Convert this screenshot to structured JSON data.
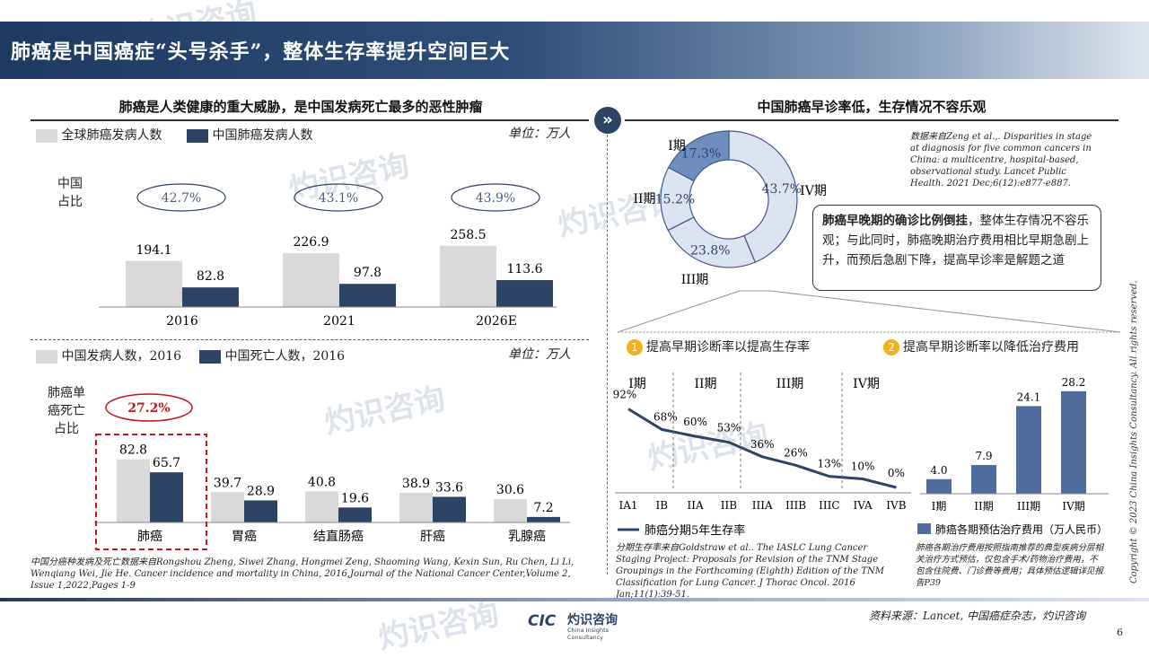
{
  "header": {
    "title": "肺癌是中国癌症“头号杀手”，整体生存率提升空间巨大"
  },
  "left": {
    "section_title": "肺癌是人类健康的重大威胁，是中国发病死亡最多的恶性肿瘤",
    "unit": "单位：万人"
  },
  "right": {
    "section_title": "中国肺癌早诊率低，生存情况不容乐观",
    "source_note": "数据来自Zeng et al.,. Disparities in stage at diagnosis for five common cancers in China: a multicentre, hospital-based, observational study. Lancet Public Health. 2021 Dec;6(12):e877-e887.",
    "callout_bold": "肺癌早晚期的确诊比例倒挂",
    "callout_rest": "，整体生存情况不容乐观；与此同时，肺癌晚期治疗费用相比早期急剧上升，而预后急剧下降，提高早诊率是解题之道",
    "strategy1_num": "1",
    "strategy1": "提高早期诊断率以提高生存率",
    "strategy2_num": "2",
    "strategy2": "提高早期诊断率以降低治疗费用",
    "survival_note": "分期生存率来自Goldstraw et al.. The IASLC Lung Cancer Staging Project: Proposals for Revision of the TNM Stage Groupings in the Forthcoming (Eighth) Edition of the TNM Classification for Lung Cancer. J Thorac Oncol. 2016 Jan;11(1):39-51.",
    "cost_note": "肺癌各期治疗费用按照指南推荐的典型疾病分层相关治疗方式预估，仅包含手术/药物治疗费用，不包含住院费、门诊费等费用；具体预估逻辑详见报告P39"
  },
  "footer": {
    "source": "资料来源：Lancet, 中国癌症杂志，灼识咨询",
    "page": "6",
    "logo_cn": "灼识咨询",
    "logo_en": "China Insights Consultancy",
    "copyright": "Copyright © 2023 China Insights Consultancy. All rights reserved."
  },
  "watermark": {
    "cn": "灼识咨询",
    "en": "China Insights Consultancy"
  },
  "colors": {
    "light": "#d9d9d9",
    "dark": "#2e4466",
    "accent_red": "#c0161c",
    "blue": "#4f6c9c",
    "donut_highlight": "#6f8dbd",
    "donut_light": "#dce4f1"
  },
  "chart_data": [
    {
      "type": "bar",
      "categories": [
        "2016",
        "2021",
        "2026E"
      ],
      "series": [
        {
          "name": "全球肺癌发病人数",
          "values": [
            194.1,
            226.9,
            258.5
          ]
        },
        {
          "name": "中国肺癌发病人数",
          "values": [
            82.8,
            97.8,
            113.6
          ]
        }
      ],
      "ratio_label": "中国\n占比",
      "ratios": [
        "42.7%",
        "43.1%",
        "43.9%"
      ],
      "ylim": [
        0,
        300
      ]
    },
    {
      "type": "bar",
      "categories": [
        "肺癌",
        "胃癌",
        "结直肠癌",
        "肝癌",
        "乳腺癌"
      ],
      "series": [
        {
          "name": "中国发病人数，2016",
          "values": [
            82.8,
            39.7,
            40.8,
            38.9,
            30.6
          ]
        },
        {
          "name": "中国死亡人数，2016",
          "values": [
            65.7,
            28.9,
            19.6,
            33.6,
            7.2
          ]
        }
      ],
      "ratio_label": "肺癌单\n癌死亡\n占比",
      "highlight_ratio": "27.2%",
      "ylim": [
        0,
        100
      ],
      "note": "中国分癌种发病及死亡数据来自Rongshou Zheng, Siwei Zhang, Hongmei Zeng, Shaoming Wang, Kexin Sun, Ru Chen, Li Li, Wenqiang Wei, Jie He. Cancer incidence and mortality in China, 2016,Journal of the National Cancer Center,Volume 2, Issue 1,2022,Pages 1-9"
    },
    {
      "type": "pie",
      "labels": [
        "I期",
        "II期",
        "III期",
        "IV期"
      ],
      "values": [
        17.3,
        15.2,
        23.8,
        43.7
      ],
      "value_labels": [
        "17.3%",
        "15.2%",
        "23.8%",
        "43.7%"
      ]
    },
    {
      "type": "line",
      "categories": [
        "IA1",
        "IB",
        "IIA",
        "IIB",
        "IIIA",
        "IIIB",
        "IIIC",
        "IVA",
        "IVB"
      ],
      "values": [
        92,
        68,
        60,
        53,
        36,
        26,
        13,
        10,
        0
      ],
      "value_labels": [
        "92%",
        "68%",
        "60%",
        "53%",
        "36%",
        "26%",
        "13%",
        "10%",
        "0%"
      ],
      "stage_groups": [
        "I期",
        "II期",
        "III期",
        "IV期"
      ],
      "series_name": "肺癌分期5年生存率",
      "ylim": [
        0,
        100
      ]
    },
    {
      "type": "bar",
      "categories": [
        "I期",
        "II期",
        "III期",
        "IV期"
      ],
      "values": [
        4.0,
        7.9,
        24.1,
        28.2
      ],
      "value_labels": [
        "4.0",
        "7.9",
        "24.1",
        "28.2"
      ],
      "series_name": "肺癌各期预估治疗费用（万人民币）",
      "ylim": [
        0,
        32
      ]
    }
  ]
}
